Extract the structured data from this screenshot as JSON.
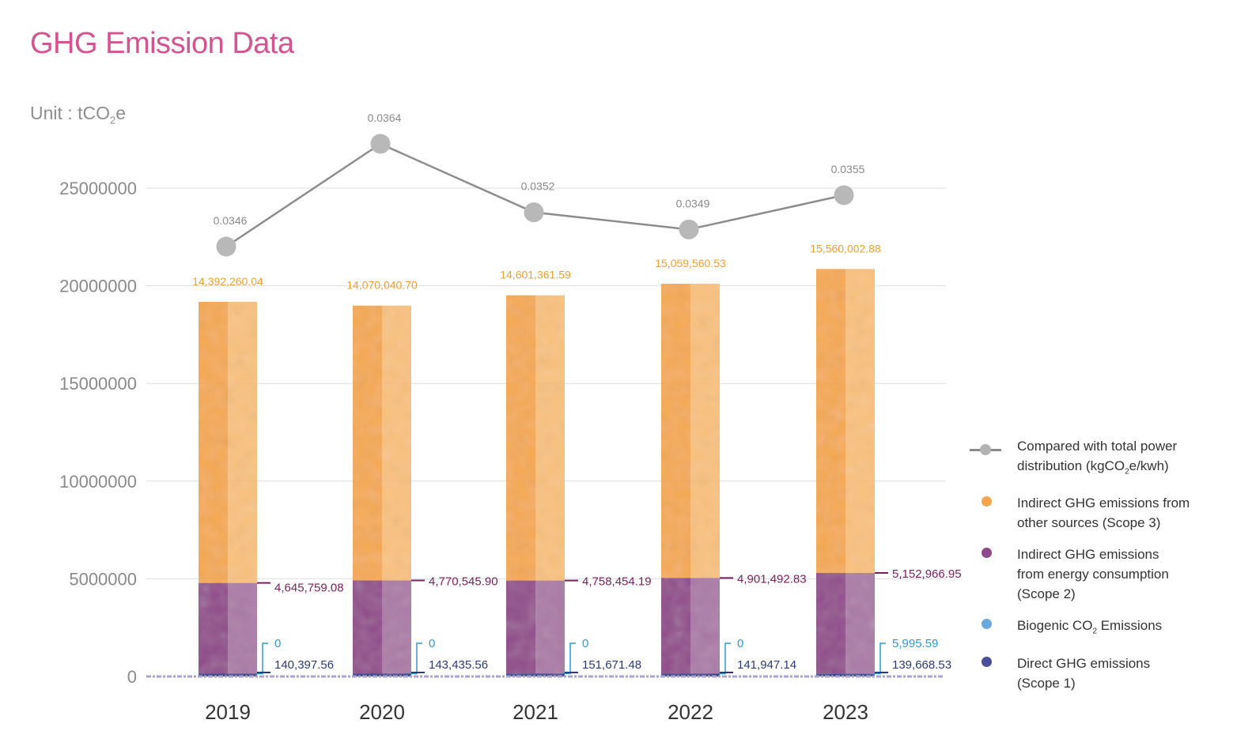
{
  "title": "GHG Emission Data",
  "unit": {
    "prefix": "Unit : tCO",
    "sub": "2",
    "suffix": "e"
  },
  "legend": [
    {
      "key": "ratio",
      "line1": "Compared with total power",
      "line2_pre": "distribution (kgCO",
      "line2_sub": "2",
      "line2_post": "e/kwh)",
      "color": "#a8a8a8"
    },
    {
      "key": "scope3",
      "line1": "Indirect GHG emissions from",
      "line2": "other sources (Scope 3)",
      "color": "#f5a54a"
    },
    {
      "key": "scope2",
      "line1": "Indirect GHG emissions",
      "line2": "from energy consumption",
      "line3": "(Scope 2)",
      "color": "#8e4a8a"
    },
    {
      "key": "biogenic",
      "line1_pre": "Biogenic CO",
      "line1_sub": "2",
      "line1_post": " Emissions",
      "color": "#6aa8e0"
    },
    {
      "key": "scope1",
      "line1": "Direct GHG emissions",
      "line2": "(Scope 1)",
      "color": "#4a4f9a"
    }
  ],
  "colors": {
    "scope3": "#f5a54a",
    "scope2": "#8e4a8a",
    "biogenic": "#2e9ad6",
    "scope1": "#2c3a8c",
    "ratio": "#a8a8a8",
    "scope3_label": "#f0a030",
    "scope2_label": "#7a1f5e",
    "scope1_label": "#2c3a7a"
  },
  "chart_data": {
    "type": "bar",
    "stacked": true,
    "categories": [
      "2019",
      "2020",
      "2021",
      "2022",
      "2023"
    ],
    "ylim": [
      0,
      25000000
    ],
    "yticks": [
      "0",
      "5000000",
      "10000000",
      "15000000",
      "20000000",
      "25000000"
    ],
    "grid": true,
    "series": [
      {
        "name": "Direct GHG emissions (Scope 1)",
        "values": [
          140397.56,
          143435.56,
          151671.48,
          141947.14,
          139668.53
        ],
        "labels": [
          "140,397.56",
          "143,435.56",
          "151,671.48",
          "141,947.14",
          "139,668.53"
        ]
      },
      {
        "name": "Biogenic CO2 Emissions",
        "values": [
          0,
          0,
          0,
          0,
          5995.59
        ],
        "labels": [
          "0",
          "0",
          "0",
          "0",
          "5,995.59"
        ]
      },
      {
        "name": "Indirect GHG emissions from energy consumption (Scope 2)",
        "values": [
          4645759.08,
          4770545.9,
          4758454.19,
          4901492.83,
          5152966.95
        ],
        "labels": [
          "4,645,759.08",
          "4,770,545.90",
          "4,758,454.19",
          "4,901,492.83",
          "5,152,966.95"
        ]
      },
      {
        "name": "Indirect GHG emissions from other sources (Scope 3)",
        "values": [
          14392260.04,
          14070040.7,
          14601361.59,
          15059560.53,
          15560002.88
        ],
        "labels": [
          "14,392,260.04",
          "14,070,040.70",
          "14,601,361.59",
          "15,059,560.53",
          "15,560,002.88"
        ]
      }
    ],
    "line_series": {
      "name": "Compared with total power distribution (kgCO2e/kwh)",
      "values": [
        0.0346,
        0.0364,
        0.0352,
        0.0349,
        0.0355
      ],
      "labels": [
        "0.0346",
        "0.0364",
        "0.0352",
        "0.0349",
        "0.0355"
      ]
    }
  }
}
